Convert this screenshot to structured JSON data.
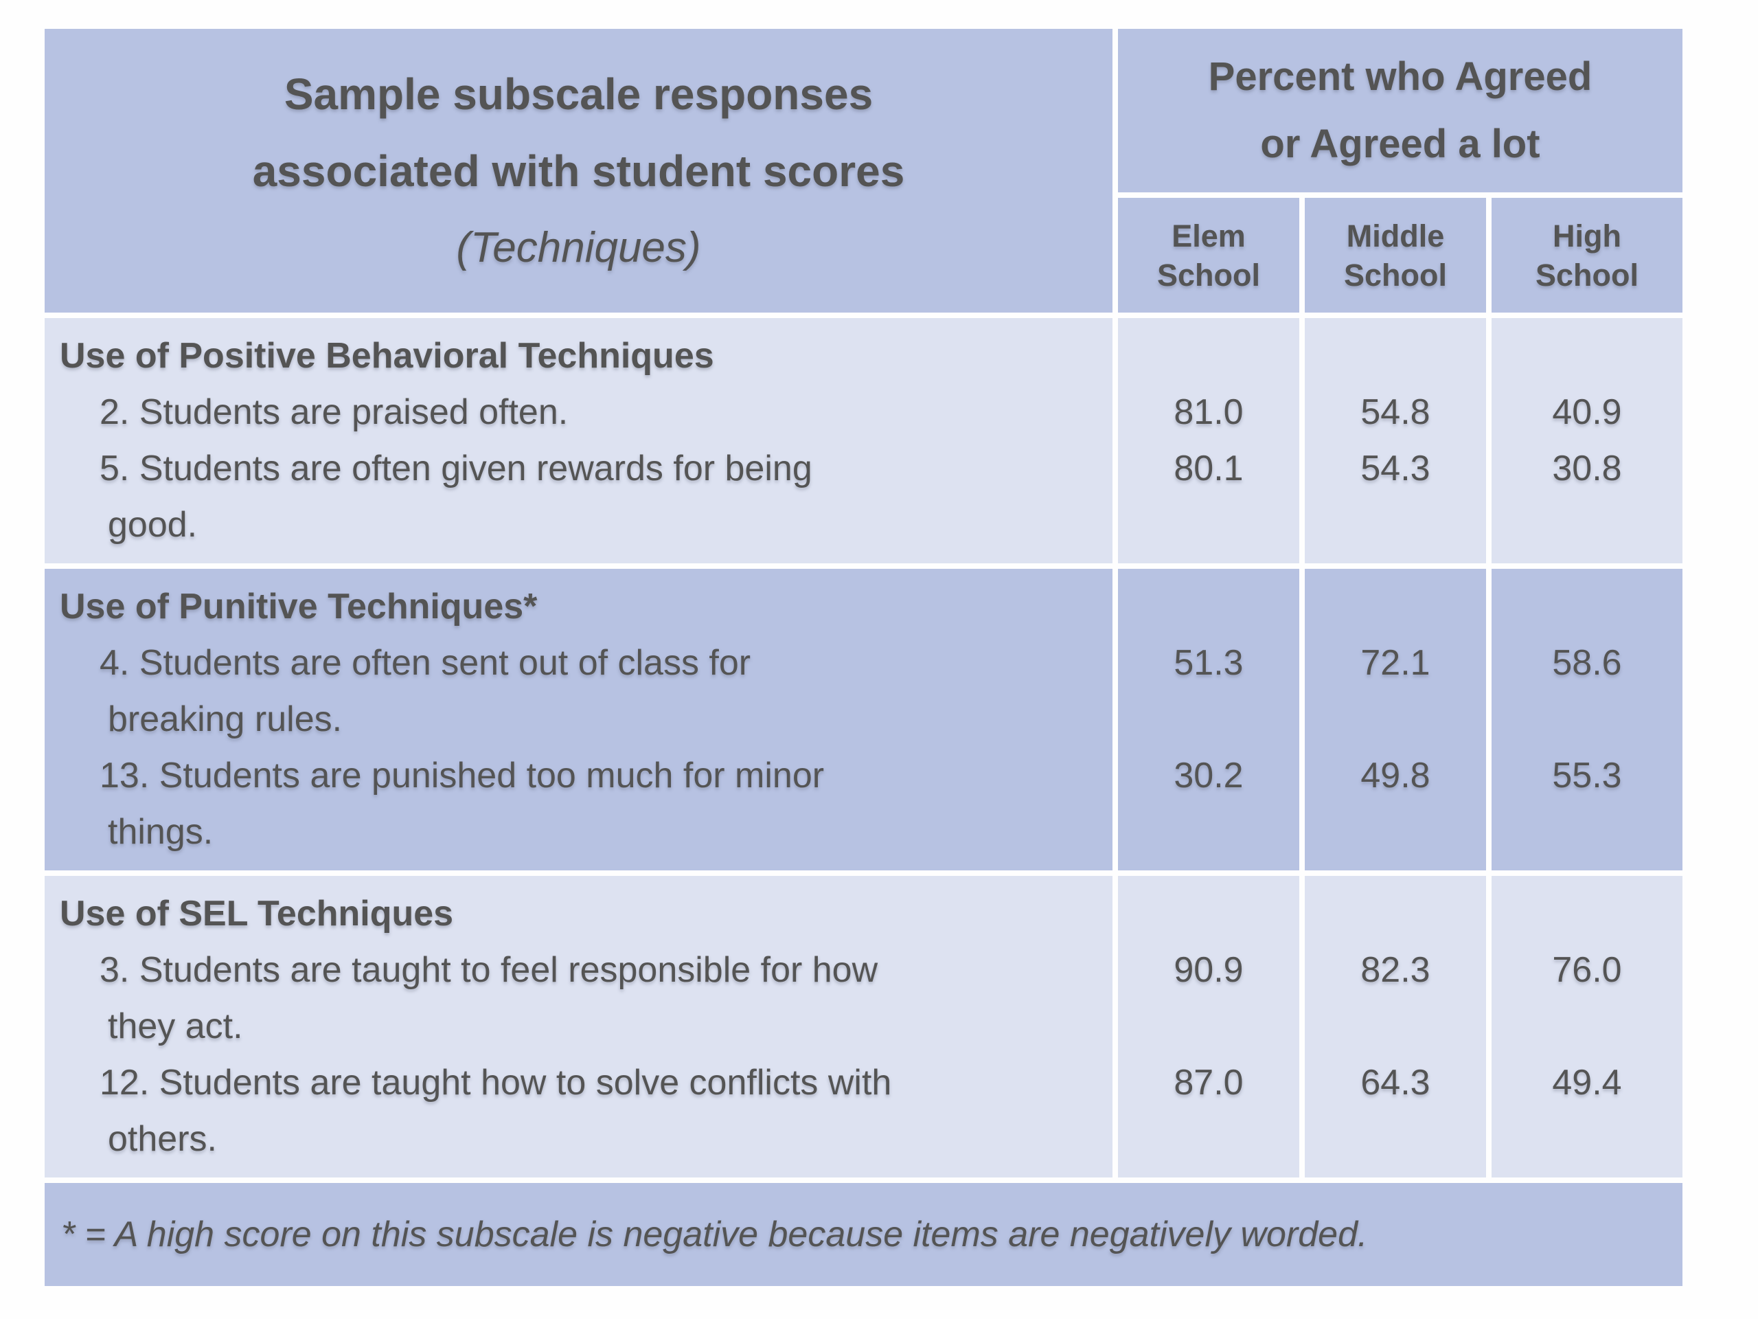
{
  "table": {
    "title": {
      "line1": "Sample subscale responses",
      "line2": "associated with student scores",
      "line3": "(Techniques)"
    },
    "value_header": "Percent who Agreed\nor Agreed a lot",
    "columns": [
      "Elem\nSchool",
      "Middle\nSchool",
      "High\nSchool"
    ],
    "sections": [
      {
        "heading": "Use of Positive Behavioral Techniques",
        "items": [
          {
            "text": "2. Students are praised often.",
            "values": [
              "81.0",
              "54.8",
              "40.9"
            ]
          },
          {
            "text": "5. Students are often given rewards for being\ngood.",
            "values": [
              "80.1",
              "54.3",
              "30.8"
            ]
          }
        ]
      },
      {
        "heading": "Use of Punitive Techniques*",
        "items": [
          {
            "text": "4. Students are often sent out of class for\nbreaking rules.",
            "values": [
              "51.3",
              "72.1",
              "58.6"
            ]
          },
          {
            "text": "13. Students are punished too much for minor\nthings.",
            "values": [
              "30.2",
              "49.8",
              "55.3"
            ]
          }
        ]
      },
      {
        "heading": "Use of SEL Techniques",
        "items": [
          {
            "text": "3. Students are taught to feel responsible for how\nthey act.",
            "values": [
              "90.9",
              "82.3",
              "76.0"
            ]
          },
          {
            "text": "12. Students are taught how to solve conflicts with\nothers.",
            "values": [
              "87.0",
              "64.3",
              "49.4"
            ]
          }
        ]
      }
    ],
    "footnote": "* = A high score on this subscale is negative because items are negatively worded.",
    "colors": {
      "band_medium": "#b7c2e2",
      "band_light": "#dde2f1",
      "divider": "#fefefe",
      "text": "#545454"
    }
  },
  "chart_data": {
    "type": "table",
    "title": "Sample subscale responses associated with student scores (Techniques)",
    "value_header": "Percent who Agreed or Agreed a lot",
    "columns": [
      "Elem School",
      "Middle School",
      "High School"
    ],
    "rows": [
      {
        "section": "Use of Positive Behavioral Techniques",
        "item": "2. Students are praised often.",
        "values": [
          81.0,
          54.8,
          40.9
        ]
      },
      {
        "section": "Use of Positive Behavioral Techniques",
        "item": "5. Students are often given rewards for being good.",
        "values": [
          80.1,
          54.3,
          30.8
        ]
      },
      {
        "section": "Use of Punitive Techniques*",
        "item": "4. Students are often sent out of class for breaking rules.",
        "values": [
          51.3,
          72.1,
          58.6
        ]
      },
      {
        "section": "Use of Punitive Techniques*",
        "item": "13. Students are punished too much for minor things.",
        "values": [
          30.2,
          49.8,
          55.3
        ]
      },
      {
        "section": "Use of SEL Techniques",
        "item": "3. Students are taught to feel responsible for how they act.",
        "values": [
          90.9,
          82.3,
          76.0
        ]
      },
      {
        "section": "Use of SEL Techniques",
        "item": "12. Students are taught how to solve conflicts with others.",
        "values": [
          87.0,
          64.3,
          49.4
        ]
      }
    ],
    "footnote": "* = A high score on this subscale is negative because items are negatively worded."
  }
}
